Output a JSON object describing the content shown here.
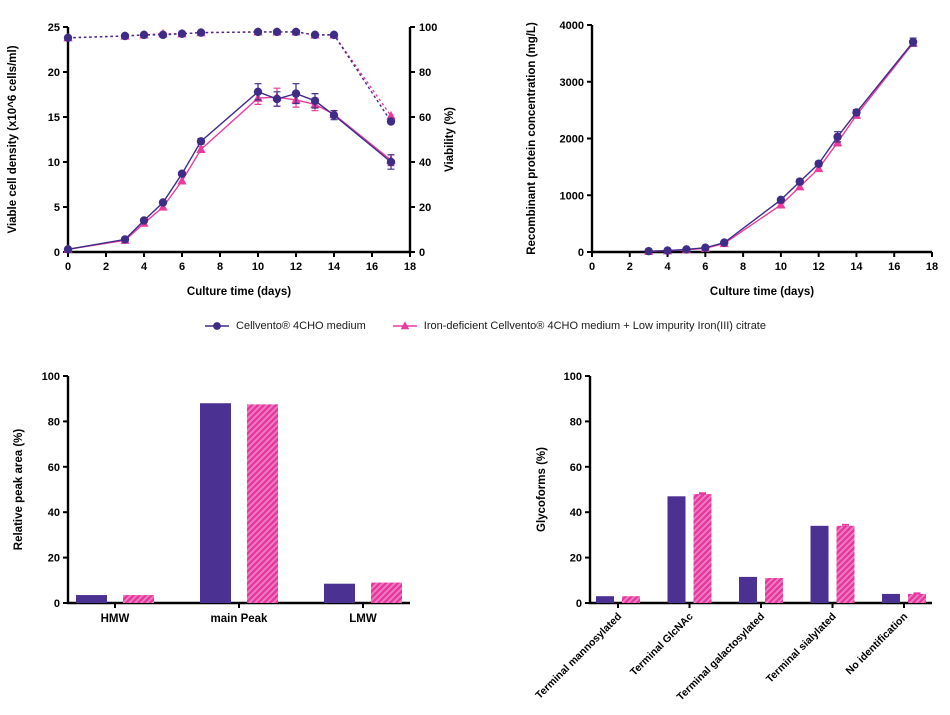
{
  "figure": {
    "background": "#ffffff"
  },
  "colors": {
    "purple_line": "#3e2c87",
    "purple_bar": "#4b3192",
    "pink_line": "#e93c9f",
    "pink_bar": "#e5399e",
    "pink_hatch_light": "#f07ec4",
    "axis": "#000000",
    "text": "#000000"
  },
  "legend": {
    "items": [
      {
        "label": "Cellvento® 4CHO medium",
        "marker": "circle",
        "color_key": "purple_line"
      },
      {
        "label": "Iron-deficient Cellvento® 4CHO medium + Low impurity Iron(III) citrate",
        "marker": "triangle",
        "color_key": "pink_line"
      }
    ]
  },
  "chart_data": [
    {
      "id": "vcd-viability",
      "type": "line",
      "title": "",
      "xlabel": "Culture time (days)",
      "ylabel": "Viable cell density (x10^6 cells/ml)",
      "ylabel_right": "Viability (%)",
      "xlim": [
        0,
        18
      ],
      "xticks": [
        0,
        2,
        4,
        6,
        8,
        10,
        12,
        14,
        16,
        18
      ],
      "ylim": [
        0,
        25
      ],
      "yticks": [
        0,
        5,
        10,
        15,
        20,
        25
      ],
      "ylim_right": [
        0,
        100
      ],
      "yticks_right": [
        0,
        20,
        40,
        60,
        80,
        100
      ],
      "grid": false,
      "x": [
        0,
        3,
        4,
        5,
        6,
        7,
        10,
        11,
        12,
        13,
        14,
        17
      ],
      "series": [
        {
          "name": "Cellvento® 4CHO medium - VCD",
          "axis": "left",
          "marker": "circle",
          "line": "solid",
          "color_key": "purple_line",
          "values": [
            0.3,
            1.4,
            3.5,
            5.5,
            8.7,
            12.3,
            17.8,
            17.0,
            17.6,
            16.8,
            15.2,
            10.0
          ],
          "errors": [
            0,
            0,
            0,
            0,
            0,
            0.3,
            0.9,
            0.8,
            1.1,
            0.8,
            0.5,
            0.8
          ]
        },
        {
          "name": "Iron-deficient Cellvento® 4CHO medium + Low impurity Iron(III) citrate - VCD",
          "axis": "left",
          "marker": "triangle",
          "line": "solid",
          "color_key": "pink_line",
          "values": [
            0.3,
            1.3,
            3.2,
            5.0,
            7.9,
            11.4,
            17.1,
            17.2,
            16.9,
            16.4,
            15.3,
            10.2
          ],
          "errors": [
            0,
            0,
            0,
            0,
            0,
            0.3,
            0.7,
            1.0,
            0.8,
            0.7,
            0.4,
            0.6
          ]
        },
        {
          "name": "Cellvento® 4CHO medium - Viability",
          "axis": "right",
          "marker": "circle",
          "line": "dotted",
          "color_key": "purple_line",
          "values": [
            95.2,
            96,
            96.5,
            96.5,
            97,
            97.5,
            97.8,
            97.8,
            97.8,
            96.5,
            96.5,
            58
          ],
          "errors": [
            0,
            0,
            0,
            0,
            0,
            0,
            0,
            0,
            0,
            0,
            0,
            0
          ]
        },
        {
          "name": "Iron-deficient Cellvento® 4CHO medium + Low impurity Iron(III) citrate - Viability",
          "axis": "right",
          "marker": "triangle",
          "line": "dotted",
          "color_key": "pink_line",
          "values": [
            95.2,
            96,
            96.5,
            97,
            97,
            97.5,
            97.8,
            97.8,
            97.8,
            96.5,
            96.5,
            60.5
          ],
          "errors": [
            0,
            0,
            0,
            0,
            0,
            0,
            0,
            0,
            0,
            0,
            0,
            0
          ]
        }
      ]
    },
    {
      "id": "protein",
      "type": "line",
      "title": "",
      "xlabel": "Culture time (days)",
      "ylabel": "Recombinant protein concentration (mg/L)",
      "xlim": [
        0,
        18
      ],
      "xticks": [
        0,
        2,
        4,
        6,
        8,
        10,
        12,
        14,
        16,
        18
      ],
      "ylim": [
        0,
        4000
      ],
      "yticks": [
        0,
        1000,
        2000,
        3000,
        4000
      ],
      "grid": false,
      "x": [
        3,
        4,
        5,
        6,
        7,
        10,
        11,
        12,
        13,
        14,
        17
      ],
      "series": [
        {
          "name": "Cellvento® 4CHO medium",
          "axis": "left",
          "marker": "circle",
          "line": "solid",
          "color_key": "purple_line",
          "values": [
            15,
            25,
            45,
            75,
            165,
            920,
            1240,
            1555,
            2030,
            2460,
            3700
          ],
          "errors": [
            0,
            0,
            0,
            0,
            0,
            30,
            40,
            40,
            90,
            50,
            70
          ]
        },
        {
          "name": "Iron-deficient Cellvento® 4CHO medium + Low impurity Iron(III) citrate",
          "axis": "left",
          "marker": "triangle",
          "line": "solid",
          "color_key": "pink_line",
          "values": [
            12,
            22,
            40,
            65,
            150,
            830,
            1150,
            1470,
            1930,
            2410,
            3680
          ],
          "errors": [
            0,
            0,
            0,
            0,
            0,
            25,
            35,
            35,
            60,
            40,
            50
          ]
        }
      ]
    },
    {
      "id": "peak-area",
      "type": "bar",
      "title": "",
      "xlabel": "",
      "ylabel": "Relative peak area (%)",
      "ylim": [
        0,
        100
      ],
      "yticks": [
        0,
        20,
        40,
        60,
        80,
        100
      ],
      "grid": false,
      "categories": [
        "HMW",
        "main Peak",
        "LMW"
      ],
      "series": [
        {
          "name": "Cellvento® 4CHO medium",
          "fill": "solid",
          "color_key": "purple_bar",
          "values": [
            3.5,
            88,
            8.5
          ],
          "errors": [
            0,
            0,
            0
          ]
        },
        {
          "name": "Iron-deficient Cellvento® 4CHO medium + Low impurity Iron(III) citrate",
          "fill": "hatch",
          "color_key": "pink_bar",
          "values": [
            3.5,
            87.5,
            9
          ],
          "errors": [
            0,
            0,
            0
          ]
        }
      ]
    },
    {
      "id": "glycoforms",
      "type": "bar",
      "title": "",
      "xlabel": "",
      "ylabel": "Glycoforms (%)",
      "ylim": [
        0,
        100
      ],
      "yticks": [
        0,
        20,
        40,
        60,
        80,
        100
      ],
      "grid": false,
      "categories": [
        "Terminal mannosylated",
        "Terminal GlcNAc",
        "Terminal galactosylated",
        "Terminal sialylated",
        "No identification"
      ],
      "series": [
        {
          "name": "Cellvento® 4CHO medium",
          "fill": "solid",
          "color_key": "purple_bar",
          "values": [
            3,
            47,
            11.5,
            34,
            4
          ],
          "errors": [
            0,
            0,
            0,
            0,
            0
          ]
        },
        {
          "name": "Iron-deficient Cellvento® 4CHO medium + Low impurity Iron(III) citrate",
          "fill": "hatch",
          "color_key": "pink_bar",
          "values": [
            3,
            48,
            11,
            34,
            4
          ],
          "errors": [
            0,
            0.5,
            0,
            0.6,
            0.4
          ]
        }
      ]
    }
  ]
}
